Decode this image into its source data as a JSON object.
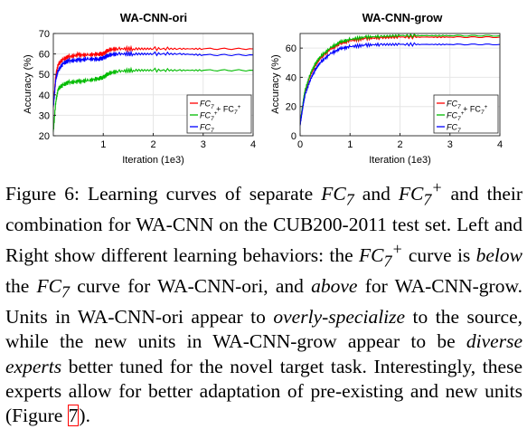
{
  "chart_data": [
    {
      "type": "line",
      "title": "WA-CNN-ori",
      "xlabel": "Iteration (1e3)",
      "ylabel": "Accuracy (%)",
      "xlim": [
        0,
        4
      ],
      "ylim": [
        20,
        70
      ],
      "xticks": [
        1,
        2,
        3,
        4
      ],
      "yticks": [
        20,
        30,
        40,
        50,
        60,
        70
      ],
      "legend_position": "bottom-right",
      "grid": true,
      "series": [
        {
          "name": "FC7 + FC7+",
          "color": "#ff0000",
          "x": [
            0.0,
            0.05,
            0.1,
            0.2,
            0.3,
            0.5,
            0.7,
            0.9,
            1.0,
            1.1,
            1.3,
            1.6,
            2.0,
            2.5,
            3.0,
            4.0
          ],
          "y": [
            34,
            50,
            55,
            57.5,
            58.5,
            59.5,
            59.5,
            60,
            60,
            62,
            62.5,
            62.5,
            62.5,
            62.5,
            62.5,
            62.5
          ]
        },
        {
          "name": "FC7+",
          "color": "#00bb00",
          "x": [
            0.0,
            0.05,
            0.1,
            0.2,
            0.3,
            0.5,
            0.7,
            0.9,
            1.0,
            1.1,
            1.3,
            1.6,
            2.0,
            2.5,
            3.0,
            4.0
          ],
          "y": [
            22,
            37,
            43,
            45,
            46,
            46.5,
            47,
            48,
            48.5,
            50.5,
            51.5,
            52,
            52,
            52,
            52,
            52
          ]
        },
        {
          "name": "FC7",
          "color": "#0000ff",
          "x": [
            0.0,
            0.05,
            0.1,
            0.2,
            0.3,
            0.5,
            0.7,
            0.9,
            1.0,
            1.1,
            1.3,
            1.6,
            2.0,
            2.5,
            3.0,
            4.0
          ],
          "y": [
            34,
            48,
            52,
            55.5,
            56.5,
            57,
            57.5,
            57.5,
            58,
            59.5,
            60,
            60,
            60,
            60,
            59.5,
            59.5
          ]
        }
      ]
    },
    {
      "type": "line",
      "title": "WA-CNN-grow",
      "xlabel": "Iteration (1e3)",
      "ylabel": "Accuracy (%)",
      "xlim": [
        0,
        4
      ],
      "ylim": [
        0,
        70
      ],
      "xticks": [
        0,
        1,
        2,
        3,
        4
      ],
      "yticks": [
        0,
        20,
        40,
        60
      ],
      "legend_position": "bottom-right",
      "grid": true,
      "series": [
        {
          "name": "FC7 + FC7+",
          "color": "#ff0000",
          "x": [
            0.0,
            0.05,
            0.1,
            0.2,
            0.3,
            0.4,
            0.6,
            0.8,
            1.0,
            1.3,
            1.6,
            2.0,
            2.5,
            3.0,
            4.0
          ],
          "y": [
            8,
            20,
            30,
            41,
            48,
            53,
            59,
            63,
            65,
            66.5,
            67,
            67.5,
            67.5,
            67.5,
            67.5
          ]
        },
        {
          "name": "FC7+",
          "color": "#00bb00",
          "x": [
            0.0,
            0.05,
            0.1,
            0.2,
            0.3,
            0.4,
            0.6,
            0.8,
            1.0,
            1.3,
            1.6,
            2.0,
            2.5,
            3.0,
            4.0
          ],
          "y": [
            8,
            21,
            31,
            42,
            49,
            54,
            60,
            64,
            66,
            67.5,
            68,
            68.5,
            68.5,
            68.5,
            68.5
          ]
        },
        {
          "name": "FC7",
          "color": "#0000ff",
          "x": [
            0.0,
            0.05,
            0.1,
            0.2,
            0.3,
            0.4,
            0.6,
            0.8,
            1.0,
            1.3,
            1.6,
            2.0,
            2.5,
            3.0,
            4.0
          ],
          "y": [
            7,
            19,
            28,
            38,
            45,
            50,
            56,
            59.5,
            61,
            62,
            62.5,
            62.5,
            62.5,
            62.5,
            62.5
          ]
        }
      ]
    }
  ],
  "legend_labels": {
    "combined": {
      "base": "FC",
      "sub": "7",
      "plus": "+ FC",
      "sub2": "7",
      "sup2": "+"
    },
    "plus": {
      "base": "FC",
      "sub": "7",
      "sup": "+"
    },
    "plain": {
      "base": "FC",
      "sub": "7"
    }
  },
  "caption": {
    "p1": "Figure 6: Learning curves of separate ",
    "p2": " and ",
    "p3": " and their combination for WA-CNN on the CUB200-2011 test set. Left and Right show different learning behaviors: the ",
    "p4": " curve is ",
    "p4i": "below",
    "p5": " the ",
    "p6": " curve for WA-CNN-ori, and ",
    "p6i": "above",
    "p7": " for WA-CNN-grow. Units in WA-CNN-ori appear to ",
    "p7i": "overly-specialize",
    "p8": " to the source, while the new units in WA-CNN-grow appear to be ",
    "p8i": "diverse experts",
    "p9": " better tuned for the novel target task. Interestingly, these experts allow for better adaptation of pre-existing and new units (Figure ",
    "ref": "7",
    "p10": ").",
    "fc": "FC",
    "sub": "7",
    "plus": "+"
  }
}
